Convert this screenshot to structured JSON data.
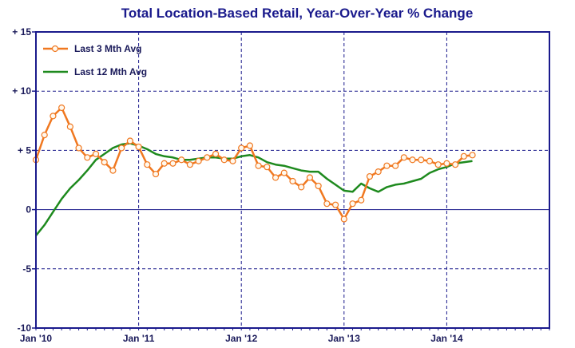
{
  "chart_data": {
    "type": "line",
    "title": "Total Location-Based Retail, Year-Over-Year % Change",
    "xlabel": "",
    "ylabel": "",
    "ylim": [
      -10,
      15
    ],
    "xlim": [
      "Jan '10",
      "Dec '14"
    ],
    "y_ticks": [
      15,
      10,
      5,
      0,
      -5,
      -10
    ],
    "y_tick_labels": [
      "+ 15",
      "+ 10",
      "+ 5",
      "0",
      "-5",
      "-10"
    ],
    "x_tick_labels": [
      "Jan '10",
      "Jan '11",
      "Jan '12",
      "Jan '13",
      "Jan '14"
    ],
    "grid": true,
    "legend_position": "top-left",
    "colors": {
      "frame": "#1a1a8c",
      "grid": "#1a1a8c",
      "three_month": "#f07820",
      "twelve_month": "#1e8a1e"
    },
    "series": [
      {
        "name": "Last 3 Mth Avg",
        "marker": "circle",
        "values": [
          4.2,
          6.3,
          7.9,
          8.6,
          7.0,
          5.2,
          4.4,
          4.7,
          4.0,
          3.3,
          5.2,
          5.8,
          5.3,
          3.8,
          3.0,
          3.9,
          3.9,
          4.2,
          3.8,
          4.1,
          4.4,
          4.7,
          4.2,
          4.1,
          5.2,
          5.4,
          3.7,
          3.6,
          2.7,
          3.1,
          2.4,
          1.9,
          2.7,
          2.0,
          0.5,
          0.4,
          -0.8,
          0.5,
          0.8,
          2.8,
          3.2,
          3.7,
          3.7,
          4.4,
          4.2,
          4.2,
          4.1,
          3.8,
          3.9,
          3.8,
          4.5,
          4.6
        ]
      },
      {
        "name": "Last 12 Mth Avg",
        "marker": "none",
        "values": [
          -2.2,
          -1.3,
          -0.2,
          0.9,
          1.8,
          2.5,
          3.3,
          4.2,
          4.7,
          5.2,
          5.5,
          5.6,
          5.4,
          5.1,
          4.7,
          4.5,
          4.4,
          4.2,
          4.2,
          4.3,
          4.4,
          4.4,
          4.3,
          4.3,
          4.5,
          4.6,
          4.4,
          4.0,
          3.8,
          3.7,
          3.5,
          3.3,
          3.2,
          3.2,
          2.6,
          2.1,
          1.6,
          1.5,
          2.2,
          1.8,
          1.5,
          1.9,
          2.1,
          2.2,
          2.4,
          2.6,
          3.1,
          3.4,
          3.6,
          3.9,
          4.0,
          4.1
        ]
      }
    ]
  }
}
